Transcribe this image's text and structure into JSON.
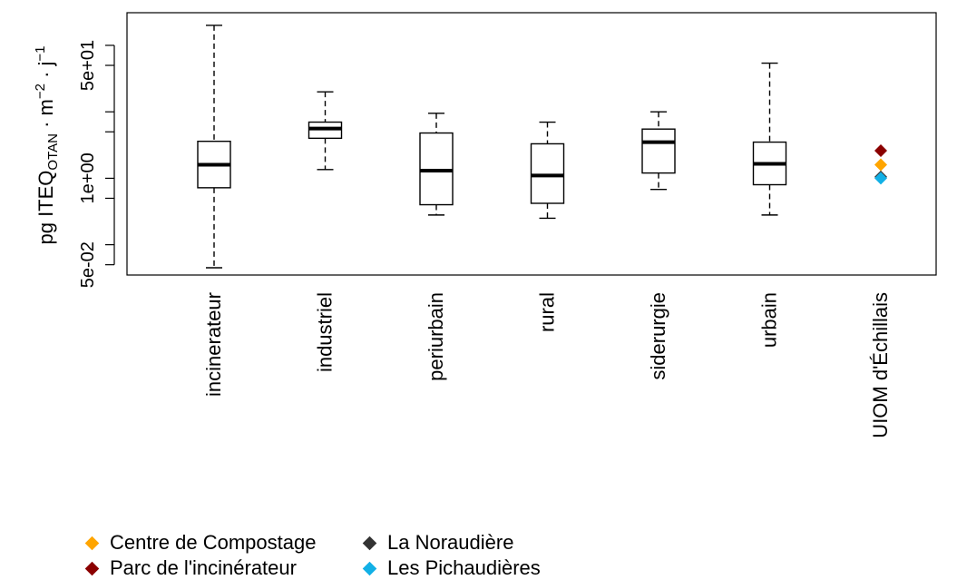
{
  "chart_data": {
    "type": "boxplot",
    "ylabel": "pg ITEQ",
    "ylabel_sub": "OTAN",
    "ylabel_tail": " · m",
    "ylabel_sup1": "−2",
    "ylabel_tail2": " · j",
    "ylabel_sup2": "−1",
    "yscale": "log",
    "ylim": [
      0.035,
      310
    ],
    "yticks": [
      {
        "value": 0.05,
        "label": "5e-02"
      },
      {
        "value": 1,
        "label": "1e+00"
      },
      {
        "value": 50,
        "label": "5e+01"
      }
    ],
    "yminor": [
      0.1,
      0.5,
      5,
      10,
      100
    ],
    "categories": [
      "incinerateur",
      "industriel",
      "periurbain",
      "rural",
      "siderurgie",
      "urbain",
      "UIOM d'Échillais"
    ],
    "boxes": [
      {
        "category": "incinerateur",
        "min": 0.045,
        "q1": 0.72,
        "median": 1.6,
        "q3": 3.6,
        "max": 200
      },
      {
        "category": "industriel",
        "min": 1.35,
        "q1": 4.0,
        "median": 5.6,
        "q3": 7.0,
        "max": 20
      },
      {
        "category": "periurbain",
        "min": 0.28,
        "q1": 0.4,
        "median": 1.3,
        "q3": 4.8,
        "max": 9.5
      },
      {
        "category": "rural",
        "min": 0.25,
        "q1": 0.42,
        "median": 1.1,
        "q3": 3.3,
        "max": 7.0
      },
      {
        "category": "siderurgie",
        "min": 0.68,
        "q1": 1.2,
        "median": 3.5,
        "q3": 5.5,
        "max": 10
      },
      {
        "category": "urbain",
        "min": 0.28,
        "q1": 0.8,
        "median": 1.65,
        "q3": 3.5,
        "max": 54
      }
    ],
    "points": [
      {
        "category": "UIOM d'Échillais",
        "series": "Centre de Compostage",
        "value": 1.6
      },
      {
        "category": "UIOM d'Échillais",
        "series": "Parc de l'incinérateur",
        "value": 2.6
      },
      {
        "category": "UIOM d'Échillais",
        "series": "La Noraudière",
        "value": 1.05
      },
      {
        "category": "UIOM d'Échillais",
        "series": "Les Pichaudières",
        "value": 1.0
      }
    ],
    "legend": [
      {
        "name": "Centre de Compostage",
        "color": "#FFA500"
      },
      {
        "name": "La Noraudière",
        "color": "#333333"
      },
      {
        "name": "Parc de l'incinérateur",
        "color": "#8B0000"
      },
      {
        "name": "Les Pichaudières",
        "color": "#12B0E6"
      }
    ],
    "legend_position": "bottom-left",
    "grid": false
  }
}
